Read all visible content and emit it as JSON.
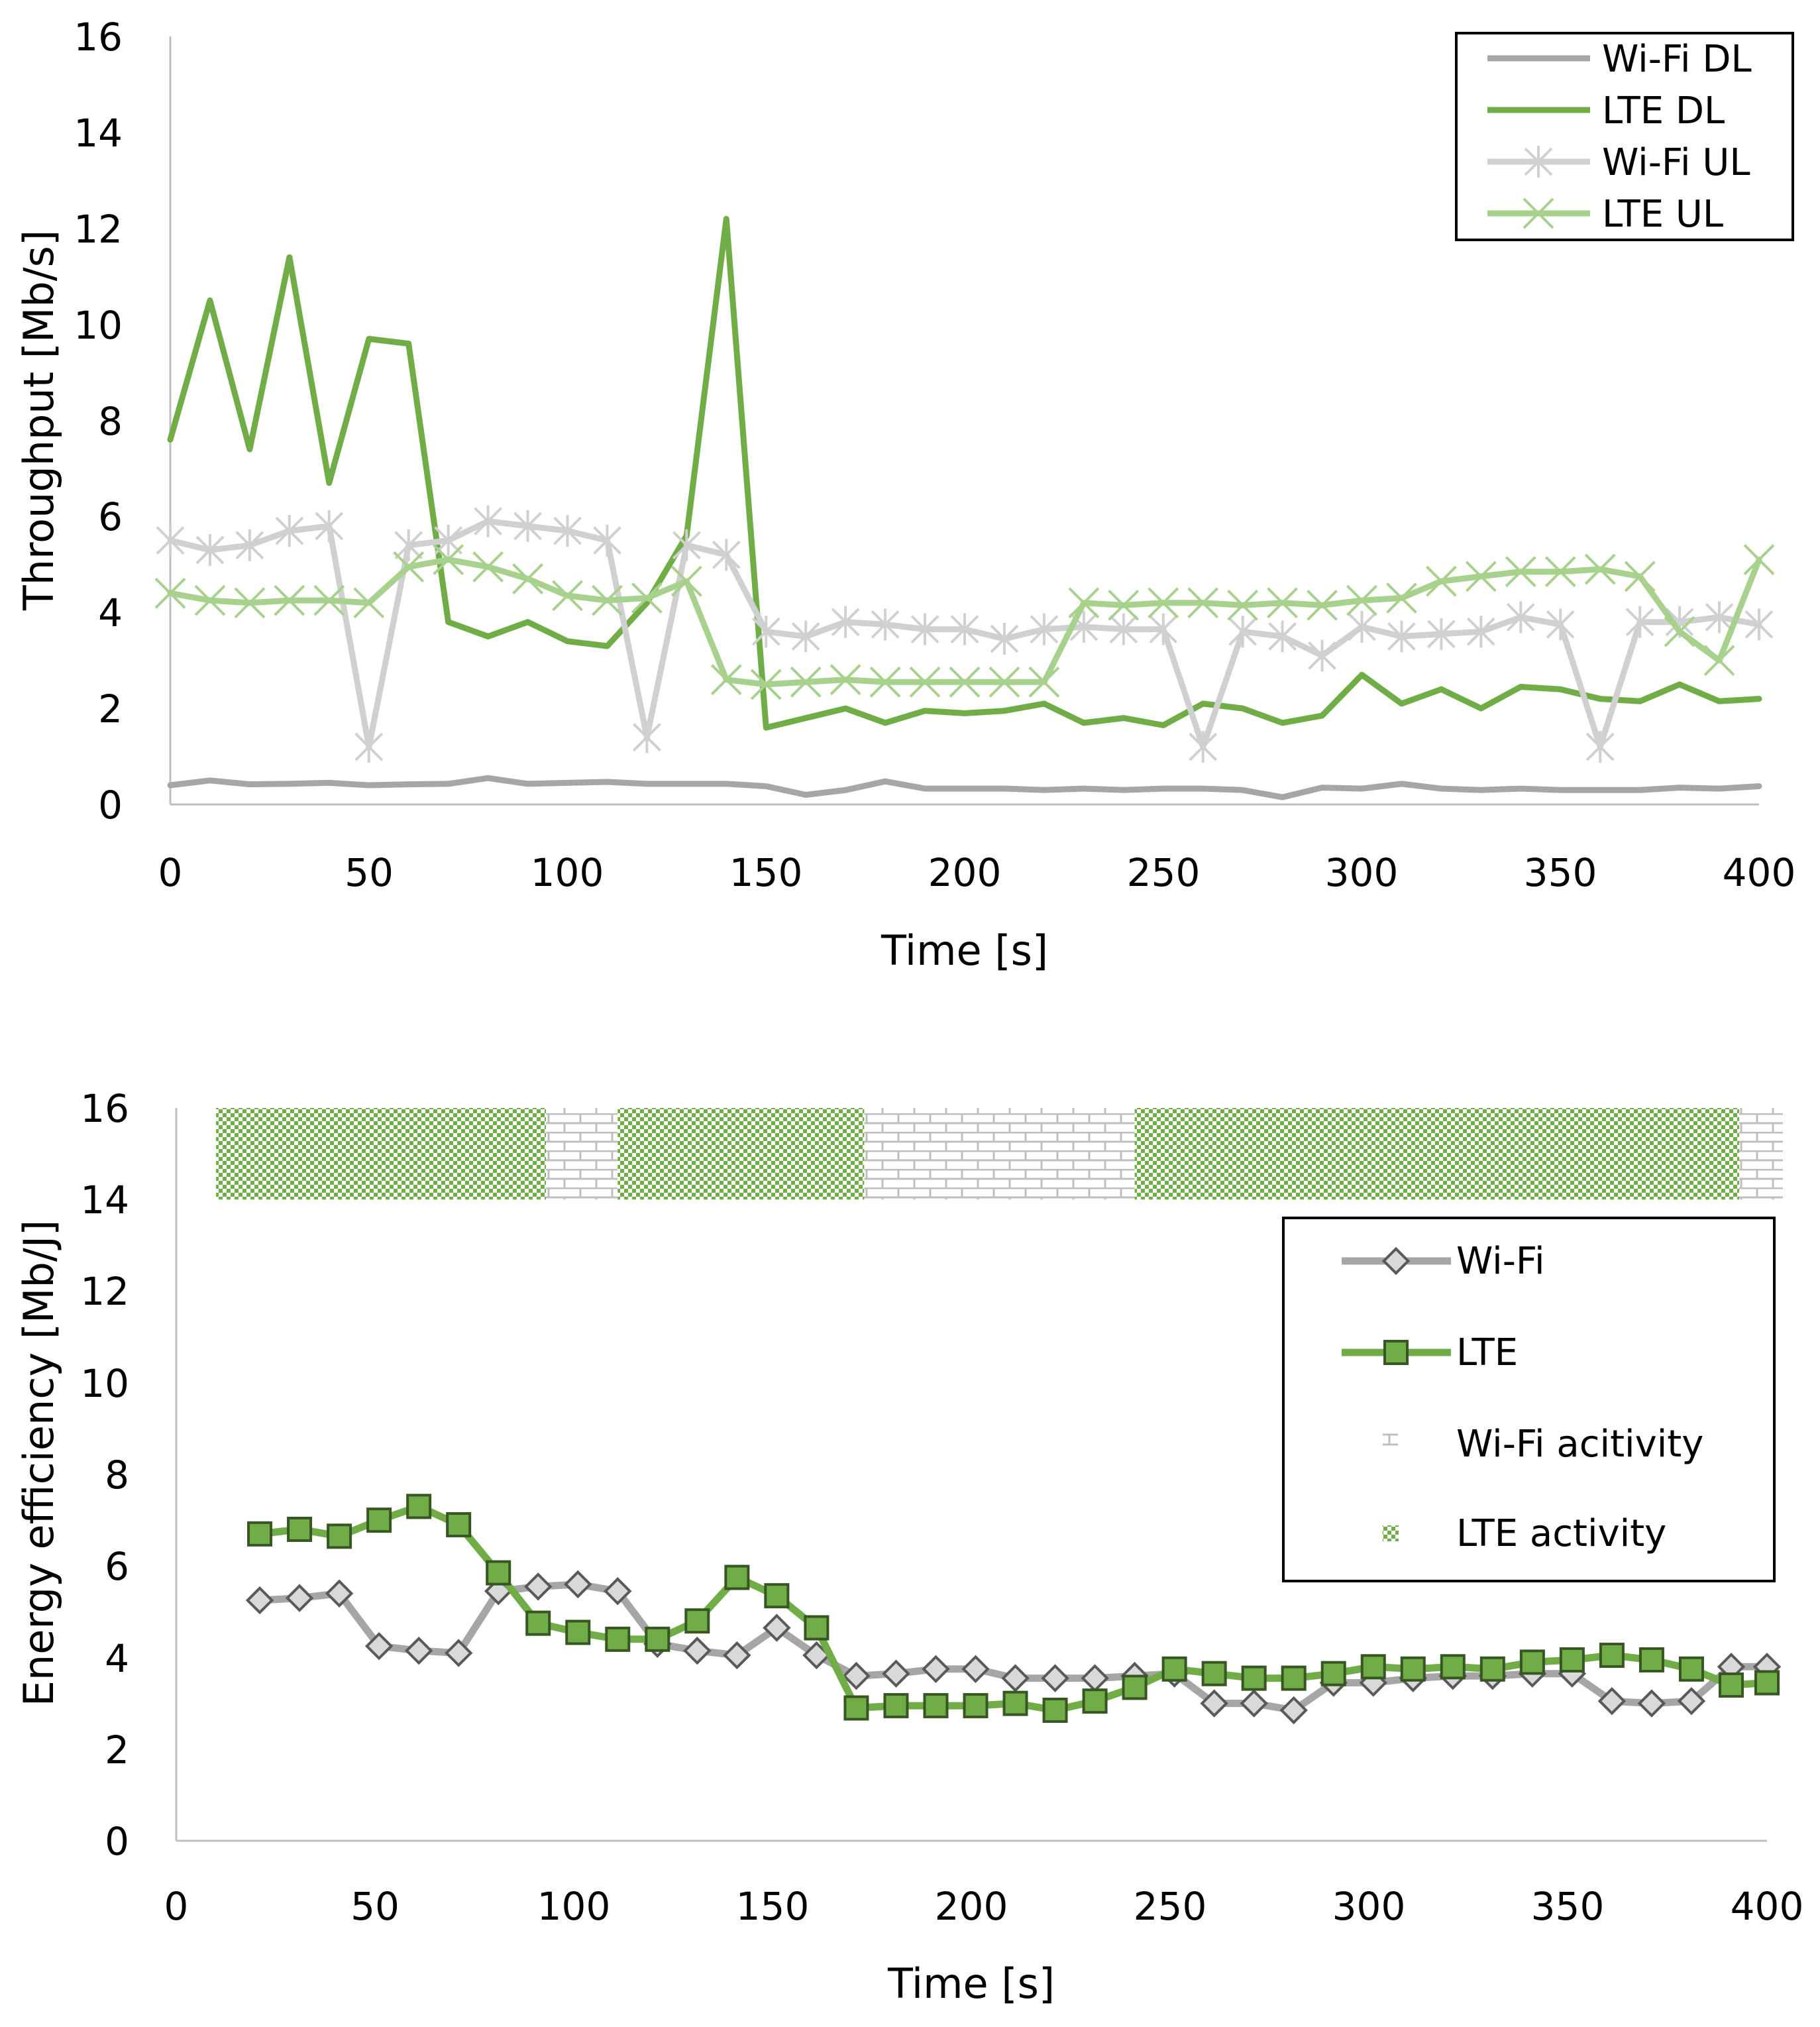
{
  "chart_data": [
    {
      "type": "line",
      "xlabel": "Time [s]",
      "ylabel": "Throughput [Mb/s]",
      "xlim": [
        0,
        400
      ],
      "ylim": [
        0,
        16
      ],
      "xticks": [
        0,
        50,
        100,
        150,
        200,
        250,
        300,
        350,
        400
      ],
      "yticks": [
        0,
        2,
        4,
        6,
        8,
        10,
        12,
        14,
        16
      ],
      "legend_position": "top-right",
      "series": [
        {
          "name": "Wi-Fi DL",
          "color": "#a6a6a6",
          "marker": "none",
          "x": [
            0,
            10,
            20,
            30,
            40,
            50,
            60,
            70,
            80,
            90,
            100,
            110,
            120,
            130,
            140,
            150,
            160,
            170,
            180,
            190,
            200,
            210,
            220,
            230,
            240,
            250,
            260,
            270,
            280,
            290,
            300,
            310,
            320,
            330,
            340,
            350,
            360,
            370,
            380,
            390,
            400
          ],
          "values": [
            0.4,
            0.5,
            0.42,
            0.43,
            0.45,
            0.4,
            0.42,
            0.43,
            0.55,
            0.43,
            0.45,
            0.47,
            0.43,
            0.43,
            0.43,
            0.38,
            0.2,
            0.3,
            0.48,
            0.33,
            0.33,
            0.33,
            0.3,
            0.33,
            0.3,
            0.33,
            0.33,
            0.3,
            0.15,
            0.35,
            0.33,
            0.43,
            0.33,
            0.3,
            0.33,
            0.3,
            0.3,
            0.3,
            0.35,
            0.33,
            0.38
          ]
        },
        {
          "name": "LTE DL",
          "color": "#70ad47",
          "marker": "none",
          "x": [
            0,
            10,
            20,
            30,
            40,
            50,
            60,
            70,
            80,
            90,
            100,
            110,
            120,
            130,
            140,
            150,
            160,
            170,
            180,
            190,
            200,
            210,
            220,
            230,
            240,
            250,
            260,
            270,
            280,
            290,
            300,
            310,
            320,
            330,
            340,
            350,
            360,
            370,
            380,
            390,
            400
          ],
          "values": [
            7.6,
            10.5,
            7.4,
            11.4,
            6.7,
            9.7,
            9.6,
            3.8,
            3.5,
            3.8,
            3.4,
            3.3,
            4.2,
            5.6,
            12.2,
            1.6,
            1.8,
            2.0,
            1.7,
            1.95,
            1.9,
            1.95,
            2.1,
            1.7,
            1.8,
            1.65,
            2.1,
            2.0,
            1.7,
            1.85,
            2.7,
            2.1,
            2.4,
            2.0,
            2.45,
            2.4,
            2.2,
            2.15,
            2.5,
            2.15,
            2.2
          ]
        },
        {
          "name": "Wi-Fi UL",
          "color": "#d0d0d0",
          "marker": "asterisk",
          "x": [
            0,
            10,
            20,
            30,
            40,
            50,
            60,
            70,
            80,
            90,
            100,
            110,
            120,
            130,
            140,
            150,
            160,
            170,
            180,
            190,
            200,
            210,
            220,
            230,
            240,
            250,
            260,
            270,
            280,
            290,
            300,
            310,
            320,
            330,
            340,
            350,
            360,
            370,
            380,
            390,
            400
          ],
          "values": [
            5.5,
            5.3,
            5.4,
            5.7,
            5.8,
            1.2,
            5.4,
            5.5,
            5.9,
            5.8,
            5.7,
            5.5,
            1.4,
            5.4,
            5.2,
            3.6,
            3.5,
            3.8,
            3.75,
            3.65,
            3.65,
            3.45,
            3.65,
            3.7,
            3.65,
            3.65,
            1.2,
            3.6,
            3.5,
            3.1,
            3.7,
            3.5,
            3.55,
            3.6,
            3.9,
            3.75,
            1.2,
            3.8,
            3.8,
            3.9,
            3.75
          ]
        },
        {
          "name": "LTE UL",
          "color": "#a9d18e",
          "marker": "x",
          "x": [
            0,
            10,
            20,
            30,
            40,
            50,
            60,
            70,
            80,
            90,
            100,
            110,
            120,
            130,
            140,
            150,
            160,
            170,
            180,
            190,
            200,
            210,
            220,
            230,
            240,
            250,
            260,
            270,
            280,
            290,
            300,
            310,
            320,
            330,
            340,
            350,
            360,
            370,
            380,
            390,
            400
          ],
          "values": [
            4.4,
            4.25,
            4.2,
            4.25,
            4.25,
            4.2,
            4.95,
            5.1,
            4.95,
            4.7,
            4.35,
            4.25,
            4.3,
            4.65,
            2.6,
            2.5,
            2.55,
            2.6,
            2.55,
            2.55,
            2.55,
            2.55,
            2.55,
            4.2,
            4.15,
            4.2,
            4.2,
            4.15,
            4.2,
            4.15,
            4.25,
            4.3,
            4.65,
            4.75,
            4.85,
            4.85,
            4.9,
            4.75,
            3.6,
            3.0,
            5.1
          ]
        }
      ]
    },
    {
      "type": "line",
      "xlabel": "Time [s]",
      "ylabel": "Energy efficiency [Mb/J]",
      "xlim": [
        0,
        400
      ],
      "ylim": [
        0,
        16
      ],
      "xticks": [
        0,
        50,
        100,
        150,
        200,
        250,
        300,
        350,
        400
      ],
      "yticks": [
        0,
        2,
        4,
        6,
        8,
        10,
        12,
        14,
        16
      ],
      "legend_position": "right",
      "series": [
        {
          "name": "Wi-Fi",
          "color": "#a6a6a6",
          "marker": "diamond",
          "x": [
            21,
            31,
            41,
            51,
            61,
            71,
            81,
            91,
            101,
            111,
            121,
            131,
            141,
            151,
            161,
            171,
            181,
            191,
            201,
            211,
            221,
            231,
            241,
            251,
            261,
            271,
            281,
            291,
            301,
            311,
            321,
            331,
            341,
            351,
            361,
            371,
            381,
            391,
            400
          ],
          "values": [
            5.25,
            5.3,
            5.4,
            4.25,
            4.15,
            4.1,
            5.45,
            5.55,
            5.6,
            5.45,
            4.3,
            4.15,
            4.05,
            4.65,
            4.05,
            3.6,
            3.65,
            3.75,
            3.75,
            3.55,
            3.55,
            3.55,
            3.6,
            3.65,
            3.0,
            3.0,
            2.85,
            3.45,
            3.45,
            3.55,
            3.6,
            3.6,
            3.65,
            3.65,
            3.05,
            3.0,
            3.05,
            3.8,
            3.8
          ]
        },
        {
          "name": "LTE",
          "color": "#70ad47",
          "marker": "square",
          "x": [
            21,
            31,
            41,
            51,
            61,
            71,
            81,
            91,
            101,
            111,
            121,
            131,
            141,
            151,
            161,
            171,
            181,
            191,
            201,
            211,
            221,
            231,
            241,
            251,
            261,
            271,
            281,
            291,
            301,
            311,
            321,
            331,
            341,
            351,
            361,
            371,
            381,
            391,
            400
          ],
          "values": [
            6.7,
            6.8,
            6.65,
            7.0,
            7.3,
            6.9,
            5.85,
            4.75,
            4.55,
            4.4,
            4.4,
            4.8,
            5.75,
            5.35,
            4.65,
            2.9,
            2.95,
            2.95,
            2.95,
            3.0,
            2.85,
            3.05,
            3.35,
            3.75,
            3.65,
            3.55,
            3.55,
            3.65,
            3.8,
            3.75,
            3.8,
            3.75,
            3.9,
            3.95,
            4.05,
            3.95,
            3.75,
            3.4,
            3.45
          ]
        }
      ],
      "activity_bands": [
        {
          "network": "LTE",
          "start": 10,
          "end": 93
        },
        {
          "network": "Wi-Fi",
          "start": 93,
          "end": 111
        },
        {
          "network": "LTE",
          "start": 111,
          "end": 173
        },
        {
          "network": "Wi-Fi",
          "start": 173,
          "end": 241
        },
        {
          "network": "LTE",
          "start": 241,
          "end": 393
        },
        {
          "network": "Wi-Fi",
          "start": 393,
          "end": 404
        }
      ],
      "activity_band_range": [
        14,
        16
      ],
      "activity_legend": [
        {
          "key": "wifi",
          "label": "Wi-Fi acitivity"
        },
        {
          "key": "lte",
          "label": "LTE activity"
        }
      ]
    }
  ]
}
